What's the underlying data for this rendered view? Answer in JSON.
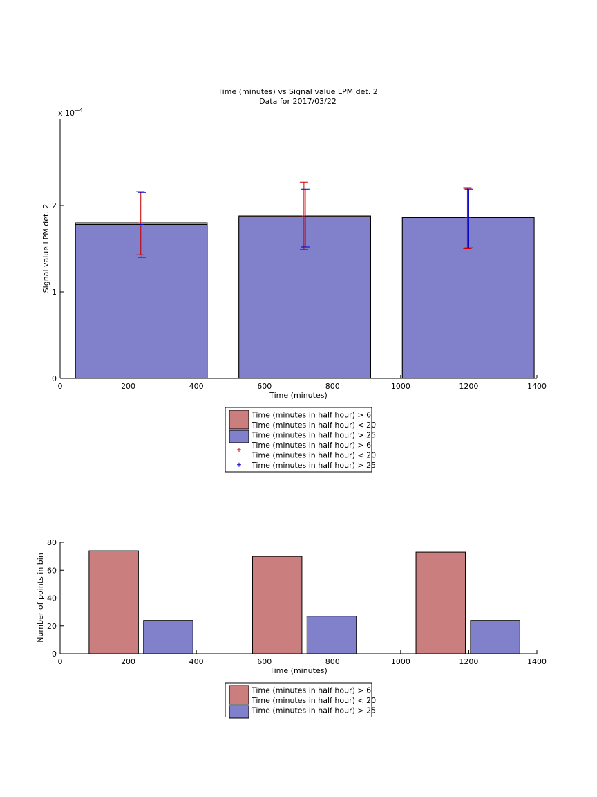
{
  "chart_data": [
    {
      "type": "bar",
      "title": "Time (minutes) vs Signal value LPM det. 2",
      "subtitle": "Data for 2017/03/22",
      "xlabel": "Time (minutes)",
      "ylabel": "Signal value LPM det. 2",
      "y_multiplier_label": "x 10",
      "y_multiplier_exponent": "−4",
      "xlim": [
        0,
        1400
      ],
      "ylim": [
        0,
        3
      ],
      "xticks": [
        "0",
        "200",
        "400",
        "600",
        "800",
        "1000",
        "1200",
        "1400"
      ],
      "xtick_values": [
        0,
        200,
        400,
        600,
        800,
        1000,
        1200,
        1400
      ],
      "yticks": [
        "0",
        "1",
        "2"
      ],
      "ytick_values": [
        0,
        1,
        2
      ],
      "grid": false,
      "legend_position": "below",
      "bar_edges": [
        [
          45,
          432
        ],
        [
          525,
          912
        ],
        [
          1005,
          1392
        ]
      ],
      "series": [
        {
          "name": "Time (minutes in half hour) > 6\nTime (minutes in half hour) < 20",
          "color": "#cb7e7e",
          "values": [
            1.8,
            1.88,
            1.86
          ],
          "error_x": [
            238,
            718,
            1198
          ],
          "error_low": [
            1.43,
            1.49,
            1.5
          ],
          "error_high": [
            2.16,
            2.27,
            2.2
          ]
        },
        {
          "name": "Time (minutes in half hour) > 25",
          "color": "#8080cb",
          "values": [
            1.78,
            1.87,
            1.86
          ],
          "error_x": [
            238,
            718,
            1198
          ],
          "error_low": [
            1.4,
            1.52,
            1.51
          ],
          "error_high": [
            2.15,
            2.19,
            2.19
          ]
        }
      ],
      "legend_entries": [
        {
          "lines": [
            "Time (minutes in half hour) > 6",
            "Time (minutes in half hour) < 20"
          ],
          "marker": "patch",
          "color": "#cb7e7e"
        },
        {
          "lines": [
            "Time (minutes in half hour) > 25"
          ],
          "marker": "patch",
          "color": "#8080cb"
        },
        {
          "lines": [
            "Time (minutes in half hour) > 6",
            "Time (minutes in half hour) < 20"
          ],
          "marker": "+",
          "color": "#cc0000"
        },
        {
          "lines": [
            "Time (minutes in half hour) > 25"
          ],
          "marker": "+",
          "color": "#0000cc"
        }
      ]
    },
    {
      "type": "bar",
      "xlabel": "Time (minutes)",
      "ylabel": "Number of points in bin",
      "xlim": [
        0,
        1400
      ],
      "ylim": [
        0,
        80
      ],
      "xticks": [
        "0",
        "200",
        "400",
        "600",
        "800",
        "1000",
        "1200",
        "1400"
      ],
      "xtick_values": [
        0,
        200,
        400,
        600,
        800,
        1000,
        1200,
        1400
      ],
      "yticks": [
        "0",
        "20",
        "40",
        "60",
        "80"
      ],
      "ytick_values": [
        0,
        20,
        40,
        60,
        80
      ],
      "grid": false,
      "legend_position": "below",
      "series": [
        {
          "name": "Time (minutes in half hour) > 6\nTime (minutes in half hour) < 20",
          "color": "#cb7e7e",
          "bar_edges": [
            [
              85,
              230
            ],
            [
              565,
              710
            ],
            [
              1045,
              1190
            ]
          ],
          "values": [
            74,
            70,
            73
          ]
        },
        {
          "name": "Time (minutes in half hour) > 25",
          "color": "#8080cb",
          "bar_edges": [
            [
              245,
              390
            ],
            [
              725,
              870
            ],
            [
              1205,
              1350
            ]
          ],
          "values": [
            24,
            27,
            24
          ]
        }
      ],
      "legend_entries": [
        {
          "lines": [
            "Time (minutes in half hour) > 6",
            "Time (minutes in half hour) < 20"
          ],
          "marker": "patch",
          "color": "#cb7e7e"
        },
        {
          "lines": [
            "Time (minutes in half hour) > 25"
          ],
          "marker": "patch",
          "color": "#8080cb"
        }
      ]
    }
  ]
}
